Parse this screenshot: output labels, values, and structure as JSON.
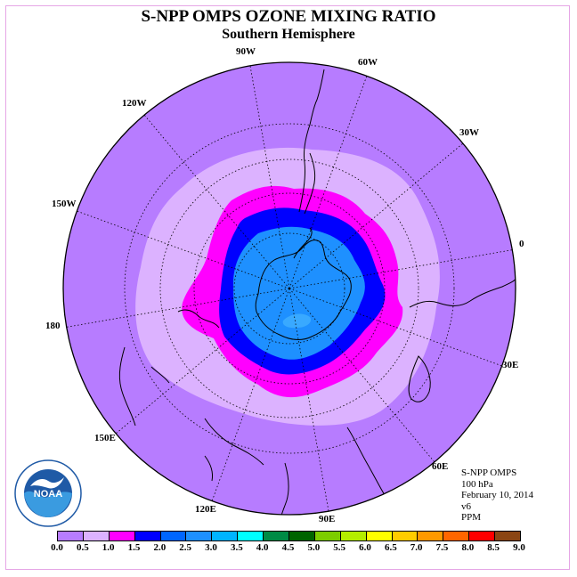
{
  "title": "S-NPP OMPS OZONE MIXING RATIO",
  "subtitle": "Southern Hemisphere",
  "longitude_labels": [
    {
      "id": "90w",
      "text": "90W"
    },
    {
      "id": "60w",
      "text": "60W"
    },
    {
      "id": "30w",
      "text": "30W"
    },
    {
      "id": "120w",
      "text": "120W"
    },
    {
      "id": "150w",
      "text": "150W"
    },
    {
      "id": "0",
      "text": "0"
    },
    {
      "id": "180",
      "text": "180"
    },
    {
      "id": "30e",
      "text": "30E"
    },
    {
      "id": "150e",
      "text": "150E"
    },
    {
      "id": "60e",
      "text": "60E"
    },
    {
      "id": "120e",
      "text": "120E"
    },
    {
      "id": "90e",
      "text": "90E"
    }
  ],
  "info": {
    "instrument": "S-NPP OMPS",
    "level": "100 hPa",
    "date": "February 10, 2014",
    "version": "v6",
    "units": "PPM"
  },
  "logo_text": "NOAA",
  "colorbar": {
    "colors": [
      "#b77cff",
      "#dcb2ff",
      "#ff00ff",
      "#0000ff",
      "#0066ff",
      "#1e90ff",
      "#00b4ff",
      "#00ffff",
      "#008b45",
      "#006400",
      "#7ccd00",
      "#b4ee00",
      "#ffff00",
      "#ffcc00",
      "#ff9900",
      "#ff6600",
      "#ff0000",
      "#8b4513"
    ],
    "labels": [
      "0.0",
      "0.5",
      "1.0",
      "1.5",
      "2.0",
      "2.5",
      "3.0",
      "3.5",
      "4.0",
      "4.5",
      "5.0",
      "5.5",
      "6.0",
      "6.5",
      "7.0",
      "7.5",
      "8.0",
      "8.5",
      "9.0"
    ]
  },
  "map_colors": {
    "outer": "#b77cff",
    "ring1": "#dcb2ff",
    "ring2": "#ff00ff",
    "ring3": "#0000ff",
    "core": "#1e90ff",
    "center": "#39a9ff"
  }
}
